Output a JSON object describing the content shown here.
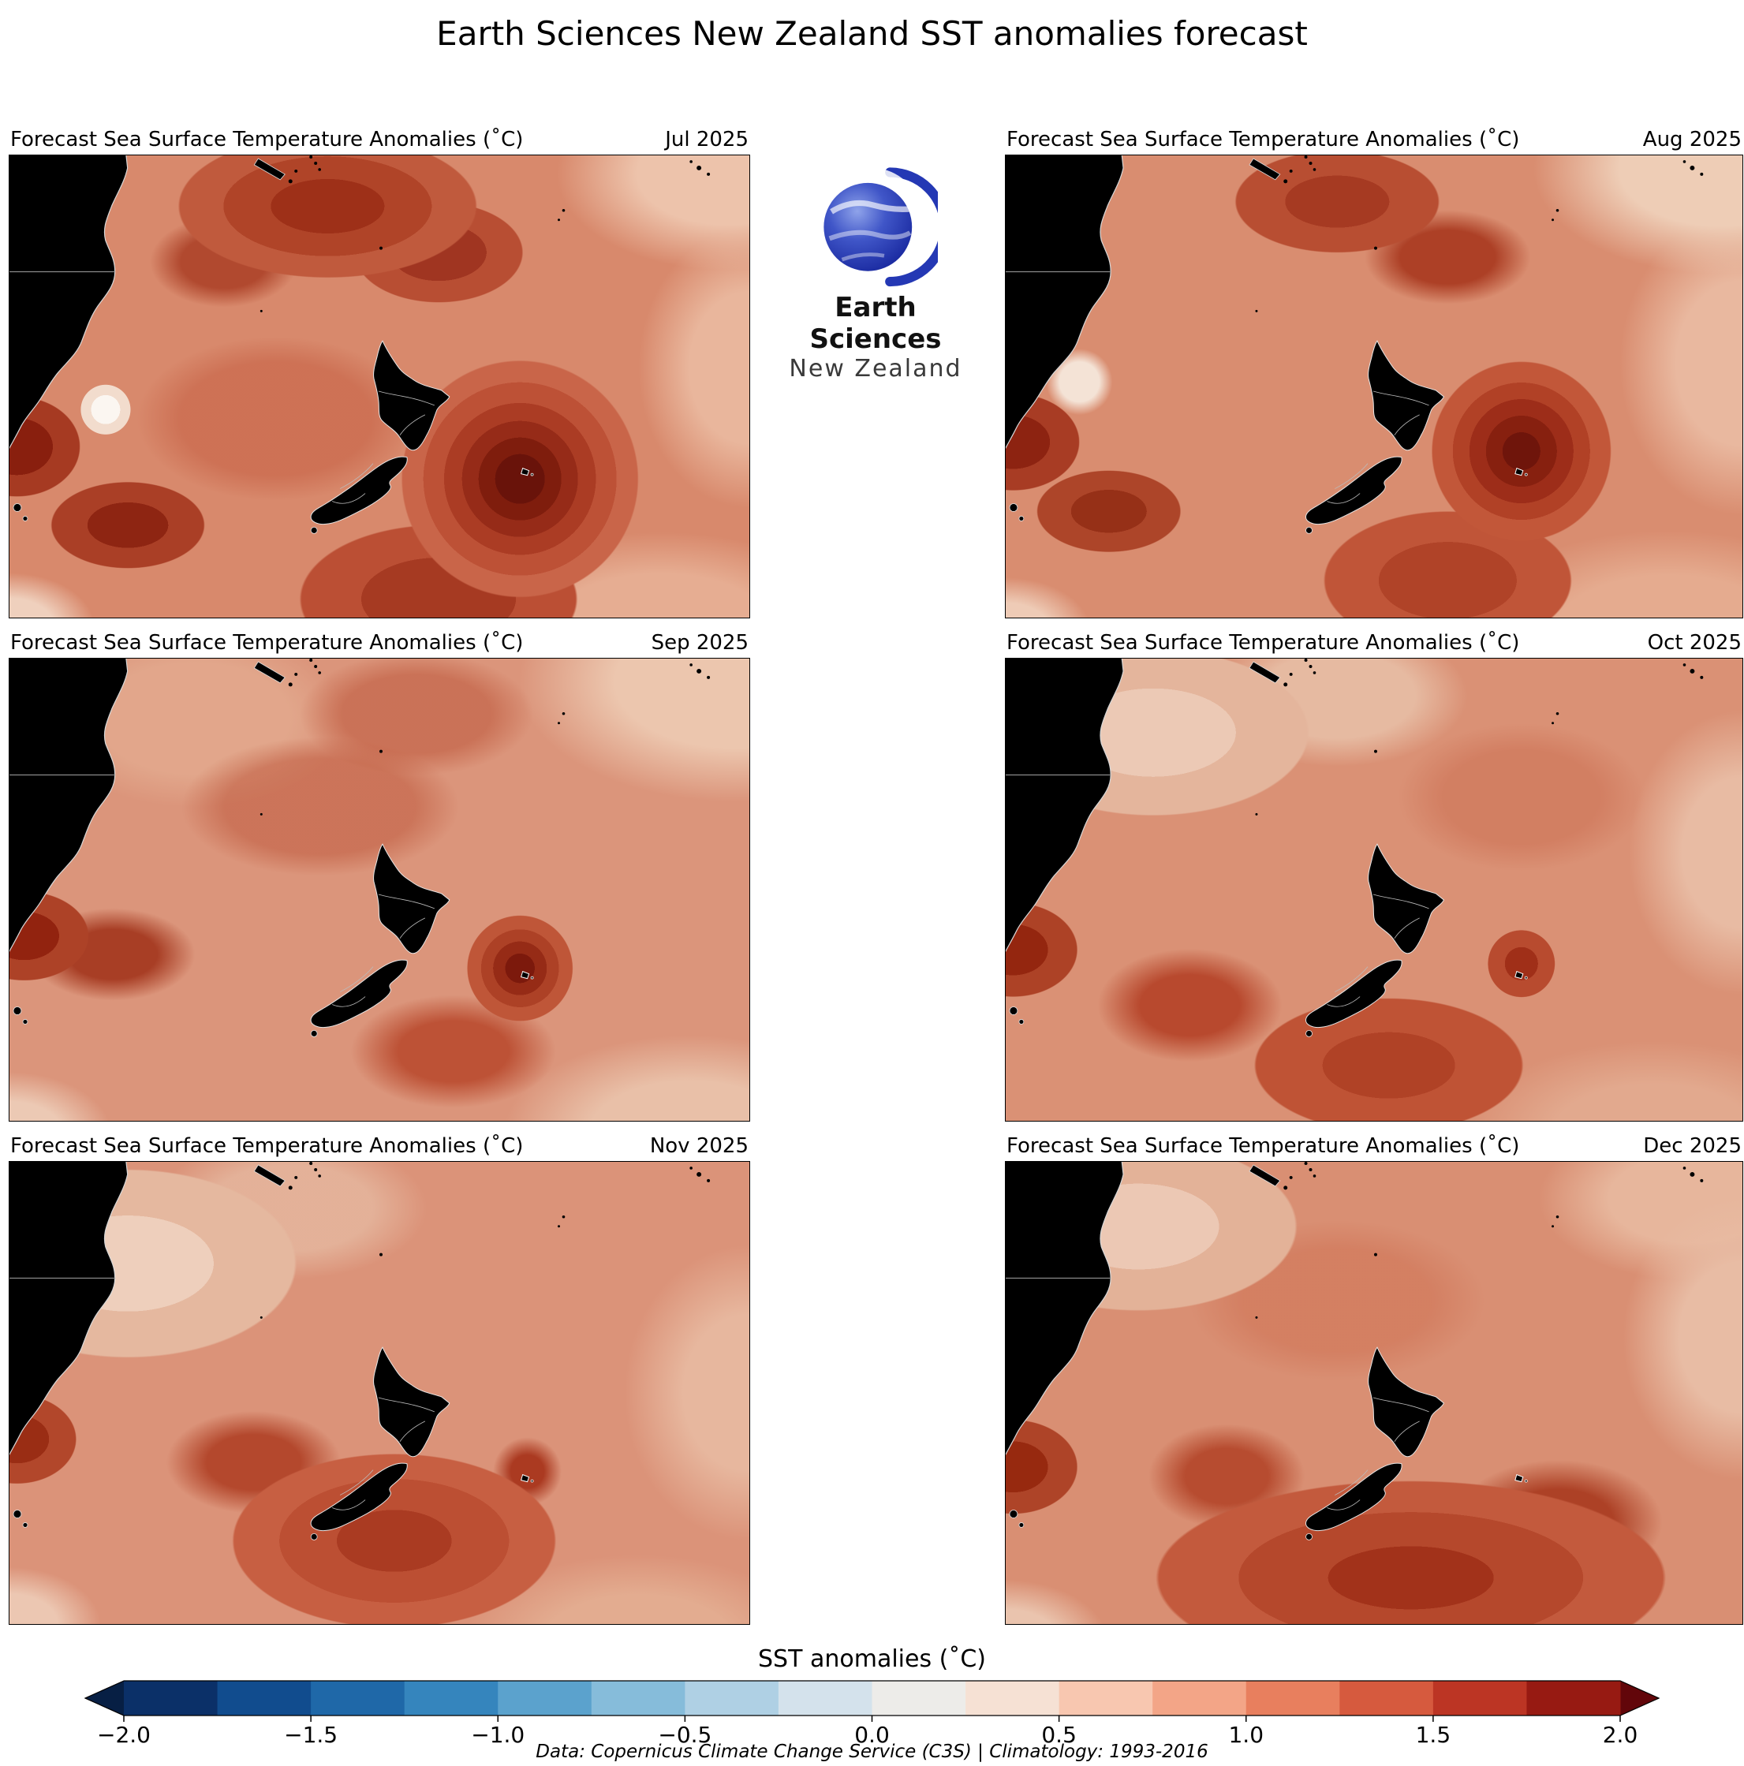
{
  "title": "Earth Sciences New Zealand SST anomalies forecast",
  "logo": {
    "line1": "Earth Sciences",
    "line2": "New Zealand",
    "globe_color": "#2438b4"
  },
  "panels": [
    {
      "title": "Forecast Sea Surface Temperature Anomalies (˚C)",
      "month": "Jul 2025"
    },
    {
      "title": "Forecast Sea Surface Temperature Anomalies (˚C)",
      "month": "Aug 2025"
    },
    {
      "title": "Forecast Sea Surface Temperature Anomalies (˚C)",
      "month": "Sep 2025"
    },
    {
      "title": "Forecast Sea Surface Temperature Anomalies (˚C)",
      "month": "Oct 2025"
    },
    {
      "title": "Forecast Sea Surface Temperature Anomalies (˚C)",
      "month": "Nov 2025"
    },
    {
      "title": "Forecast Sea Surface Temperature Anomalies (˚C)",
      "month": "Dec 2025"
    }
  ],
  "colorbar": {
    "label": "SST anomalies (˚C)",
    "ticks": [
      "−2.0",
      "−1.5",
      "−1.0",
      "−0.5",
      "0.0",
      "0.5",
      "1.0",
      "1.5",
      "2.0"
    ],
    "min": -2.0,
    "max": 2.0,
    "colors": [
      "#0b3068",
      "#114c8e",
      "#1f68a8",
      "#3585bd",
      "#5ba2cd",
      "#86bcda",
      "#afd0e4",
      "#d4e2ec",
      "#edece9",
      "#f6e1d4",
      "#f8c7b0",
      "#f3a587",
      "#e87f5e",
      "#d65a3e",
      "#bc3524",
      "#971a12"
    ],
    "arrow_left": "#071f44",
    "arrow_right": "#62060a"
  },
  "caption": "Data: Copernicus Climate Change Service (C3S) | Climatology: 1993-2016",
  "chart_data": {
    "type": "heatmap",
    "title": "Earth Sciences New Zealand SST anomalies forecast",
    "variable": "Forecast Sea Surface Temperature Anomalies (˚C)",
    "region": "Southwest Pacific: eastern Australia, Tasman Sea and New Zealand",
    "months": [
      "Jul 2025",
      "Aug 2025",
      "Sep 2025",
      "Oct 2025",
      "Nov 2025",
      "Dec 2025"
    ],
    "colorbar": {
      "label": "SST anomalies (˚C)",
      "range": [
        -2.0,
        2.0
      ],
      "tick_step": 0.5,
      "scheme": "blue-white-red diverging, arrow extensions both ends"
    },
    "panel_summaries": [
      {
        "month": "Jul 2025",
        "typical_anomaly_c": 0.9,
        "max_anomaly_c": 2.0,
        "max_location": "east of New Zealand near Chatham Islands",
        "min_anomaly_c": 0.0,
        "notes": "widespread +0.5 to +1.5; intense maroon hotspot east of NZ; dark patches north and southwest; small near-zero white patch in central Tasman"
      },
      {
        "month": "Aug 2025",
        "typical_anomaly_c": 0.8,
        "max_anomaly_c": 1.8,
        "max_location": "east of New Zealand",
        "notes": "hotspot east of NZ persists slightly weaker; warm band along left (Australian) coast"
      },
      {
        "month": "Sep 2025",
        "typical_anomaly_c": 0.7,
        "max_anomaly_c": 1.6,
        "max_location": "east of New Zealand",
        "notes": "field smoother; compact intense spot east of NZ; moderate warmth in Tasman"
      },
      {
        "month": "Oct 2025",
        "typical_anomaly_c": 0.7,
        "max_anomaly_c": 1.2,
        "max_location": "south of New Zealand",
        "notes": "lighter sector northwest; moderate warm band along bottom of domain"
      },
      {
        "month": "Nov 2025",
        "typical_anomaly_c": 0.7,
        "max_anomaly_c": 1.2,
        "max_location": "south and southeast of New Zealand",
        "notes": "pale (+0.25) region northwest; warm band south of NZ strengthens"
      },
      {
        "month": "Dec 2025",
        "typical_anomaly_c": 0.8,
        "max_anomaly_c": 1.3,
        "max_location": "south/southeast of New Zealand",
        "notes": "broad warm band (+1 to +1.3) wrapping south of NZ; lighter northwest corner"
      }
    ],
    "source": "Data: Copernicus Climate Change Service (C3S) | Climatology: 1993-2016"
  }
}
